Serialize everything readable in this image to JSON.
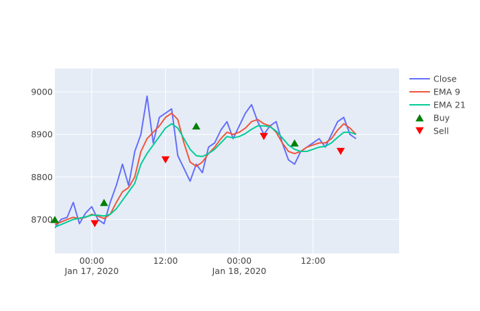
{
  "chart_data": {
    "type": "line",
    "title": "",
    "xlabel": "",
    "ylabel": "",
    "x_range": [
      "2020-01-16T18:00",
      "2020-01-19T02:00"
    ],
    "ylim": [
      8620,
      9055
    ],
    "y_ticks": [
      8700,
      8800,
      8900,
      9000
    ],
    "x_ticks": [
      {
        "x": "2020-01-17T00:00",
        "line1": "00:00",
        "line2": "Jan 17, 2020"
      },
      {
        "x": "2020-01-17T12:00",
        "line1": "12:00",
        "line2": ""
      },
      {
        "x": "2020-01-18T00:00",
        "line1": "00:00",
        "line2": "Jan 18, 2020"
      },
      {
        "x": "2020-01-18T12:00",
        "line1": "12:00",
        "line2": ""
      }
    ],
    "grid": true,
    "legend_position": "right",
    "background": "#e5ecf6",
    "x": [
      "2020-01-16T18:00",
      "2020-01-16T19:00",
      "2020-01-16T20:00",
      "2020-01-16T21:00",
      "2020-01-16T22:00",
      "2020-01-16T23:00",
      "2020-01-17T00:00",
      "2020-01-17T01:00",
      "2020-01-17T02:00",
      "2020-01-17T03:00",
      "2020-01-17T04:00",
      "2020-01-17T05:00",
      "2020-01-17T06:00",
      "2020-01-17T07:00",
      "2020-01-17T08:00",
      "2020-01-17T09:00",
      "2020-01-17T10:00",
      "2020-01-17T11:00",
      "2020-01-17T12:00",
      "2020-01-17T13:00",
      "2020-01-17T14:00",
      "2020-01-17T15:00",
      "2020-01-17T16:00",
      "2020-01-17T17:00",
      "2020-01-17T18:00",
      "2020-01-17T19:00",
      "2020-01-17T20:00",
      "2020-01-17T21:00",
      "2020-01-17T22:00",
      "2020-01-17T23:00",
      "2020-01-18T00:00",
      "2020-01-18T01:00",
      "2020-01-18T02:00",
      "2020-01-18T03:00",
      "2020-01-18T04:00",
      "2020-01-18T05:00",
      "2020-01-18T06:00",
      "2020-01-18T07:00",
      "2020-01-18T08:00",
      "2020-01-18T09:00",
      "2020-01-18T10:00",
      "2020-01-18T11:00",
      "2020-01-18T12:00",
      "2020-01-18T13:00",
      "2020-01-18T14:00",
      "2020-01-18T15:00",
      "2020-01-18T16:00",
      "2020-01-18T17:00",
      "2020-01-18T18:00",
      "2020-01-18T19:00"
    ],
    "series": [
      {
        "name": "Close",
        "color": "#636efa",
        "mode": "line",
        "values": [
          8680,
          8700,
          8705,
          8740,
          8690,
          8715,
          8730,
          8700,
          8690,
          8740,
          8780,
          8830,
          8780,
          8860,
          8900,
          8990,
          8880,
          8940,
          8950,
          8960,
          8850,
          8820,
          8790,
          8830,
          8810,
          8870,
          8880,
          8910,
          8930,
          8890,
          8920,
          8950,
          8970,
          8930,
          8900,
          8920,
          8930,
          8880,
          8840,
          8830,
          8860,
          8870,
          8880,
          8890,
          8870,
          8900,
          8930,
          8940,
          8900,
          8890
        ]
      },
      {
        "name": "EMA 9",
        "color": "#ef553b",
        "mode": "line",
        "values": [
          8688,
          8694,
          8700,
          8705,
          8702,
          8705,
          8712,
          8708,
          8702,
          8712,
          8740,
          8765,
          8775,
          8800,
          8860,
          8890,
          8905,
          8920,
          8940,
          8950,
          8935,
          8880,
          8835,
          8825,
          8835,
          8855,
          8870,
          8890,
          8905,
          8900,
          8905,
          8915,
          8930,
          8935,
          8925,
          8920,
          8905,
          8880,
          8860,
          8855,
          8860,
          8870,
          8875,
          8880,
          8880,
          8890,
          8910,
          8925,
          8915,
          8900
        ]
      },
      {
        "name": "EMA 21",
        "color": "#00cc96",
        "mode": "line",
        "values": [
          8682,
          8688,
          8694,
          8700,
          8703,
          8706,
          8710,
          8710,
          8708,
          8712,
          8725,
          8745,
          8765,
          8785,
          8830,
          8855,
          8875,
          8895,
          8915,
          8925,
          8915,
          8890,
          8865,
          8850,
          8848,
          8855,
          8865,
          8880,
          8895,
          8892,
          8895,
          8902,
          8912,
          8920,
          8920,
          8918,
          8908,
          8892,
          8875,
          8865,
          8860,
          8860,
          8865,
          8870,
          8872,
          8880,
          8893,
          8905,
          8905,
          8900
        ]
      }
    ],
    "markers": [
      {
        "name": "Buy",
        "color": "#008000",
        "symbol": "triangle-up",
        "points": [
          {
            "x": "2020-01-16T18:00",
            "y": 8700
          },
          {
            "x": "2020-01-17T02:00",
            "y": 8740
          },
          {
            "x": "2020-01-17T17:00",
            "y": 8920
          },
          {
            "x": "2020-01-18T09:00",
            "y": 8880
          }
        ]
      },
      {
        "name": "Sell",
        "color": "#ff0000",
        "symbol": "triangle-down",
        "points": [
          {
            "x": "2020-01-17T00:30",
            "y": 8690
          },
          {
            "x": "2020-01-17T12:00",
            "y": 8840
          },
          {
            "x": "2020-01-18T04:00",
            "y": 8895
          },
          {
            "x": "2020-01-18T16:30",
            "y": 8860
          }
        ]
      }
    ]
  }
}
